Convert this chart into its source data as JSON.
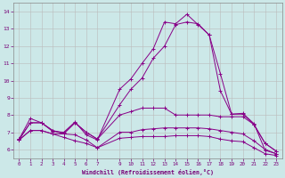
{
  "xlabel": "Windchill (Refroidissement éolien,°C)",
  "background_color": "#cce8e8",
  "line_color": "#880088",
  "grid_color": "#bbbbbb",
  "xlim": [
    -0.5,
    23.5
  ],
  "ylim": [
    5.5,
    14.5
  ],
  "xticks": [
    0,
    1,
    2,
    3,
    4,
    5,
    6,
    7,
    9,
    10,
    11,
    12,
    13,
    14,
    15,
    16,
    17,
    18,
    19,
    20,
    21,
    22,
    23
  ],
  "yticks": [
    6,
    7,
    8,
    9,
    10,
    11,
    12,
    13,
    14
  ],
  "x": [
    0,
    1,
    2,
    3,
    4,
    5,
    6,
    7,
    9,
    10,
    11,
    12,
    13,
    14,
    15,
    16,
    17,
    18,
    19,
    20,
    21,
    22,
    23
  ],
  "series": {
    "upper": [
      6.6,
      7.8,
      7.55,
      7.05,
      7.0,
      7.6,
      6.85,
      6.55,
      9.5,
      10.1,
      11.0,
      11.85,
      13.4,
      13.3,
      13.85,
      13.25,
      12.65,
      10.4,
      8.05,
      8.1,
      7.5,
      5.95,
      5.75
    ],
    "mid_upper": [
      6.6,
      7.55,
      7.55,
      7.1,
      6.95,
      7.55,
      7.0,
      6.6,
      8.6,
      9.5,
      10.15,
      11.3,
      12.0,
      13.25,
      13.4,
      13.3,
      12.65,
      9.4,
      8.05,
      8.05,
      7.45,
      6.35,
      5.9
    ],
    "mid": [
      6.55,
      7.55,
      7.55,
      7.1,
      6.9,
      7.55,
      7.0,
      6.6,
      8.0,
      8.2,
      8.4,
      8.4,
      8.4,
      8.0,
      8.0,
      8.0,
      8.0,
      7.9,
      7.9,
      7.9,
      7.45,
      6.35,
      5.9
    ],
    "lower_a": [
      6.55,
      7.1,
      7.1,
      6.9,
      6.9,
      6.85,
      6.55,
      6.1,
      7.0,
      7.0,
      7.15,
      7.2,
      7.25,
      7.25,
      7.25,
      7.25,
      7.2,
      7.1,
      7.0,
      6.9,
      6.5,
      6.0,
      5.75
    ],
    "lower_b": [
      6.55,
      7.1,
      7.1,
      6.9,
      6.7,
      6.5,
      6.35,
      6.1,
      6.65,
      6.7,
      6.75,
      6.75,
      6.75,
      6.8,
      6.8,
      6.8,
      6.75,
      6.6,
      6.5,
      6.45,
      6.1,
      5.75,
      5.65
    ]
  }
}
